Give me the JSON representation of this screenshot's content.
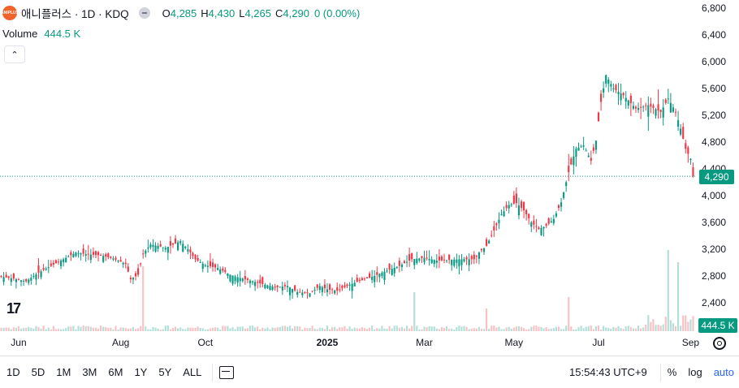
{
  "header": {
    "logo_text": "ANIPLUS",
    "symbol": "애니플러스 · 1D · KDQ",
    "ohlc": [
      {
        "label": "O",
        "value": "4,285"
      },
      {
        "label": "H",
        "value": "4,430"
      },
      {
        "label": "L",
        "value": "4,265"
      },
      {
        "label": "C",
        "value": "4,290"
      }
    ],
    "change": "0 (0.00%)",
    "volume_label": "Volume",
    "volume_value": "444.5 K"
  },
  "colors": {
    "up": "#089981",
    "down": "#f23645",
    "volume_up": "#b2dfd8",
    "volume_down": "#f7c1c5"
  },
  "last_price_label": "4,290",
  "volume_badge": "444.5 K",
  "chart_data": {
    "type": "candlestick",
    "timeframe": "1D",
    "y_axis": {
      "ticks": [
        "6,800",
        "6,400",
        "6,000",
        "5,600",
        "5,200",
        "4,800",
        "4,400",
        "4,000",
        "3,600",
        "3,200",
        "2,800",
        "2,400"
      ],
      "values": [
        6800,
        6400,
        6000,
        5600,
        5200,
        4800,
        4400,
        4000,
        3600,
        3200,
        2800,
        2400
      ],
      "range": [
        2330,
        6840
      ],
      "position": "right"
    },
    "x_axis": {
      "labels": [
        "Jun",
        "Aug",
        "Oct",
        "2025",
        "Mar",
        "May",
        "Jul",
        "Sep"
      ],
      "label_index": [
        7,
        48,
        82,
        131,
        170,
        206,
        240,
        277
      ]
    },
    "last_price": 4290,
    "close_path": [
      [
        0,
        2790
      ],
      [
        5,
        2760
      ],
      [
        10,
        2720
      ],
      [
        15,
        2850
      ],
      [
        20,
        2950
      ],
      [
        25,
        3050
      ],
      [
        30,
        3150
      ],
      [
        35,
        3120
      ],
      [
        40,
        3110
      ],
      [
        45,
        3060
      ],
      [
        50,
        2980
      ],
      [
        52,
        2750
      ],
      [
        55,
        2820
      ],
      [
        57,
        3130
      ],
      [
        60,
        3270
      ],
      [
        63,
        3250
      ],
      [
        66,
        3220
      ],
      [
        69,
        3270
      ],
      [
        72,
        3320
      ],
      [
        75,
        3200
      ],
      [
        78,
        3050
      ],
      [
        82,
        2960
      ],
      [
        87,
        2920
      ],
      [
        92,
        2820
      ],
      [
        95,
        2780
      ],
      [
        100,
        2730
      ],
      [
        105,
        2680
      ],
      [
        110,
        2630
      ],
      [
        115,
        2650
      ],
      [
        119,
        2560
      ],
      [
        124,
        2540
      ],
      [
        128,
        2650
      ],
      [
        131,
        2600
      ],
      [
        135,
        2580
      ],
      [
        140,
        2670
      ],
      [
        145,
        2740
      ],
      [
        150,
        2800
      ],
      [
        155,
        2880
      ],
      [
        160,
        2950
      ],
      [
        165,
        3050
      ],
      [
        170,
        3070
      ],
      [
        175,
        3030
      ],
      [
        180,
        3040
      ],
      [
        185,
        3050
      ],
      [
        190,
        3050
      ],
      [
        192,
        3150
      ],
      [
        195,
        3250
      ],
      [
        198,
        3480
      ],
      [
        201,
        3720
      ],
      [
        204,
        3860
      ],
      [
        207,
        3890
      ],
      [
        210,
        3780
      ],
      [
        213,
        3600
      ],
      [
        216,
        3500
      ],
      [
        219,
        3550
      ],
      [
        222,
        3650
      ],
      [
        225,
        3900
      ],
      [
        228,
        4350
      ],
      [
        231,
        4700
      ],
      [
        234,
        4750
      ],
      [
        237,
        4520
      ],
      [
        239,
        4820
      ],
      [
        241,
        5400
      ],
      [
        243,
        5800
      ],
      [
        246,
        5600
      ],
      [
        250,
        5500
      ],
      [
        255,
        5300
      ],
      [
        260,
        5350
      ],
      [
        265,
        5250
      ],
      [
        268,
        5450
      ],
      [
        271,
        5250
      ],
      [
        273,
        5000
      ],
      [
        275,
        4700
      ],
      [
        277,
        4550
      ],
      [
        278,
        4290
      ]
    ],
    "volume_spikes": [
      {
        "index": 57,
        "value": "444.5K"
      },
      {
        "index": 166,
        "value": "444.5K"
      },
      {
        "index": 195,
        "value": "444.5K"
      },
      {
        "index": 228,
        "value": "444.5K"
      },
      {
        "index": 268,
        "value": "444.5K"
      },
      {
        "index": 272,
        "value": "444.5K"
      }
    ]
  },
  "bottom_bar": {
    "ranges": [
      "1D",
      "5D",
      "1M",
      "3M",
      "6M",
      "1Y",
      "5Y",
      "ALL"
    ],
    "time": "15:54:43 UTC+9",
    "percent": "%",
    "log": "log",
    "auto": "auto"
  }
}
